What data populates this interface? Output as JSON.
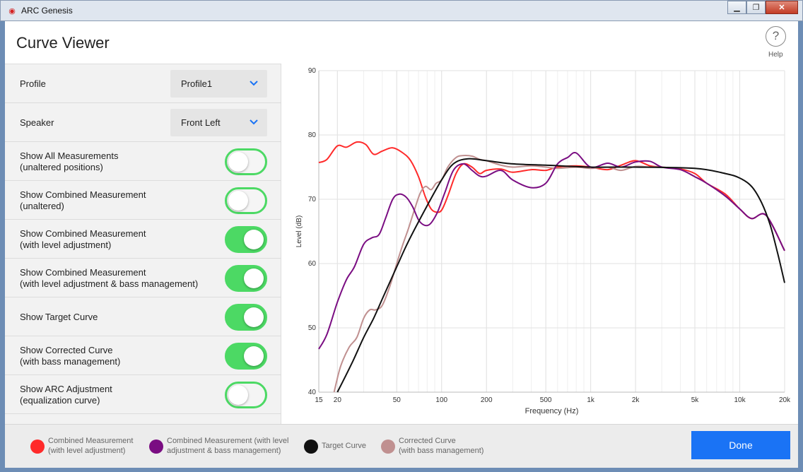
{
  "window": {
    "app_title": "ARC Genesis"
  },
  "header": {
    "title": "Curve Viewer",
    "help_icon": "?",
    "help_label": "Help"
  },
  "settings": {
    "profile": {
      "label": "Profile",
      "value": "Profile1"
    },
    "speaker": {
      "label": "Speaker",
      "value": "Front Left"
    },
    "toggles": [
      {
        "line1": "Show All Measurements",
        "line2": "(unaltered  positions)",
        "on": false
      },
      {
        "line1": "Show Combined Measurement",
        "line2": "(unaltered)",
        "on": false
      },
      {
        "line1": "Show Combined Measurement",
        "line2": "(with level adjustment)",
        "on": true
      },
      {
        "line1": "Show Combined Measurement",
        "line2": "(with level adjustment & bass management)",
        "on": true
      },
      {
        "line1": "Show Target Curve",
        "line2": "",
        "on": true
      },
      {
        "line1": "Show Corrected Curve",
        "line2": "(with bass management)",
        "on": true
      },
      {
        "line1": "Show ARC Adjustment",
        "line2": "(equalization curve)",
        "on": false
      }
    ]
  },
  "legend": [
    {
      "line1": "Combined Measurement",
      "line2": "(with level adjustment)",
      "color": "#ff2a2a"
    },
    {
      "line1": "Combined Measurement (with level",
      "line2": "adjustment & bass management)",
      "color": "#7a0d82"
    },
    {
      "line1": "Target Curve",
      "line2": "",
      "color": "#111111"
    },
    {
      "line1": "Corrected Curve",
      "line2": "(with bass management)",
      "color": "#c09090"
    }
  ],
  "footer": {
    "done_label": "Done"
  },
  "colors": {
    "accent": "#1a73f5",
    "toggle_on": "#4cd964"
  },
  "chart_data": {
    "type": "line",
    "xlabel": "Frequency (Hz)",
    "ylabel": "Level (dB)",
    "xscale": "log",
    "xlim": [
      15,
      20000
    ],
    "ylim": [
      40,
      90
    ],
    "x_ticks": [
      15,
      20,
      50,
      100,
      200,
      500,
      1000,
      2000,
      5000,
      10000,
      20000
    ],
    "x_tick_labels": [
      "15",
      "20",
      "50",
      "100",
      "200",
      "500",
      "1k",
      "2k",
      "5k",
      "10k",
      "20k"
    ],
    "y_ticks": [
      40,
      50,
      60,
      70,
      80,
      90
    ],
    "grid": true,
    "series": [
      {
        "name": "Combined Measurement (with level adjustment)",
        "color": "#ff2a2a",
        "x": [
          15,
          17,
          20,
          23,
          27,
          31,
          35,
          40,
          47,
          55,
          62,
          70,
          78,
          85,
          92,
          100,
          110,
          125,
          140,
          160,
          180,
          200,
          250,
          300,
          400,
          500,
          600,
          800,
          1000,
          1300,
          1600,
          2000,
          2500,
          3000,
          4000,
          5000,
          6000,
          8000,
          10000,
          12000,
          15000,
          20000
        ],
        "y": [
          75.7,
          76.2,
          78.3,
          78.1,
          78.9,
          78.5,
          77.0,
          77.5,
          78.0,
          77.2,
          76.0,
          73.5,
          70.3,
          68.5,
          68.0,
          68.3,
          70.5,
          74.0,
          75.5,
          75.0,
          74.0,
          74.5,
          74.7,
          74.2,
          74.6,
          74.5,
          75.0,
          75.2,
          75.0,
          74.6,
          75.3,
          76.0,
          75.2,
          75.0,
          74.7,
          74.0,
          72.5,
          70.8,
          68.5,
          67.0,
          67.5,
          62.0
        ]
      },
      {
        "name": "Combined Measurement (with level adjustment & bass management)",
        "color": "#7a0d82",
        "x": [
          15,
          17,
          20,
          23,
          26,
          30,
          34,
          38,
          42,
          47,
          52,
          58,
          64,
          70,
          76,
          82,
          88,
          95,
          105,
          120,
          140,
          160,
          180,
          200,
          250,
          300,
          400,
          500,
          600,
          700,
          800,
          1000,
          1300,
          1600,
          2000,
          2500,
          3000,
          4000,
          5000,
          6000,
          8000,
          10000,
          12000,
          15000,
          20000
        ],
        "y": [
          46.7,
          49.0,
          54.0,
          57.5,
          59.5,
          63.0,
          64.0,
          64.5,
          67.0,
          70.0,
          70.8,
          70.3,
          68.8,
          66.8,
          66.0,
          66.0,
          66.8,
          68.3,
          71.0,
          74.5,
          75.5,
          74.5,
          73.6,
          73.6,
          74.5,
          73.0,
          71.8,
          72.5,
          75.5,
          76.5,
          77.2,
          75.0,
          75.6,
          75.0,
          75.8,
          75.9,
          75.0,
          74.6,
          73.5,
          72.5,
          70.5,
          68.5,
          67.0,
          67.5,
          62.0
        ]
      },
      {
        "name": "Target Curve",
        "color": "#111111",
        "x": [
          20,
          25,
          30,
          35,
          40,
          50,
          60,
          80,
          100,
          120,
          150,
          200,
          300,
          500,
          1000,
          2000,
          5000,
          8000,
          10000,
          12000,
          14000,
          16000,
          18000,
          20000
        ],
        "y": [
          40.0,
          44.5,
          48.5,
          51.5,
          54.5,
          59.5,
          63.5,
          69.0,
          73.0,
          75.5,
          76.3,
          76.0,
          75.5,
          75.3,
          75.0,
          75.0,
          74.8,
          74.0,
          73.3,
          72.0,
          69.5,
          66.0,
          61.5,
          57.0
        ]
      },
      {
        "name": "Corrected Curve (with bass management)",
        "color": "#c09090",
        "x": [
          19,
          21,
          24,
          27,
          30,
          33,
          36,
          40,
          45,
          50,
          55,
          60,
          66,
          72,
          78,
          85,
          92,
          100,
          110,
          125,
          140,
          160,
          180,
          200,
          250,
          300,
          400,
          500,
          600,
          800,
          1000,
          1300,
          1600,
          2000,
          2500,
          3000,
          4000,
          5000,
          6000,
          8000,
          10000,
          12000,
          15000,
          20000
        ],
        "y": [
          40.0,
          44.0,
          47.0,
          48.5,
          51.5,
          52.8,
          52.8,
          53.5,
          56.5,
          60.0,
          63.0,
          65.5,
          68.5,
          71.0,
          72.0,
          71.5,
          72.5,
          73.0,
          75.0,
          76.5,
          76.8,
          76.7,
          76.2,
          76.0,
          75.3,
          75.0,
          75.2,
          75.0,
          74.8,
          75.0,
          74.8,
          75.0,
          74.5,
          75.1,
          75.0,
          75.0,
          74.6,
          73.5,
          72.5,
          70.5,
          68.5,
          67.0,
          67.5,
          62.0
        ]
      }
    ]
  }
}
